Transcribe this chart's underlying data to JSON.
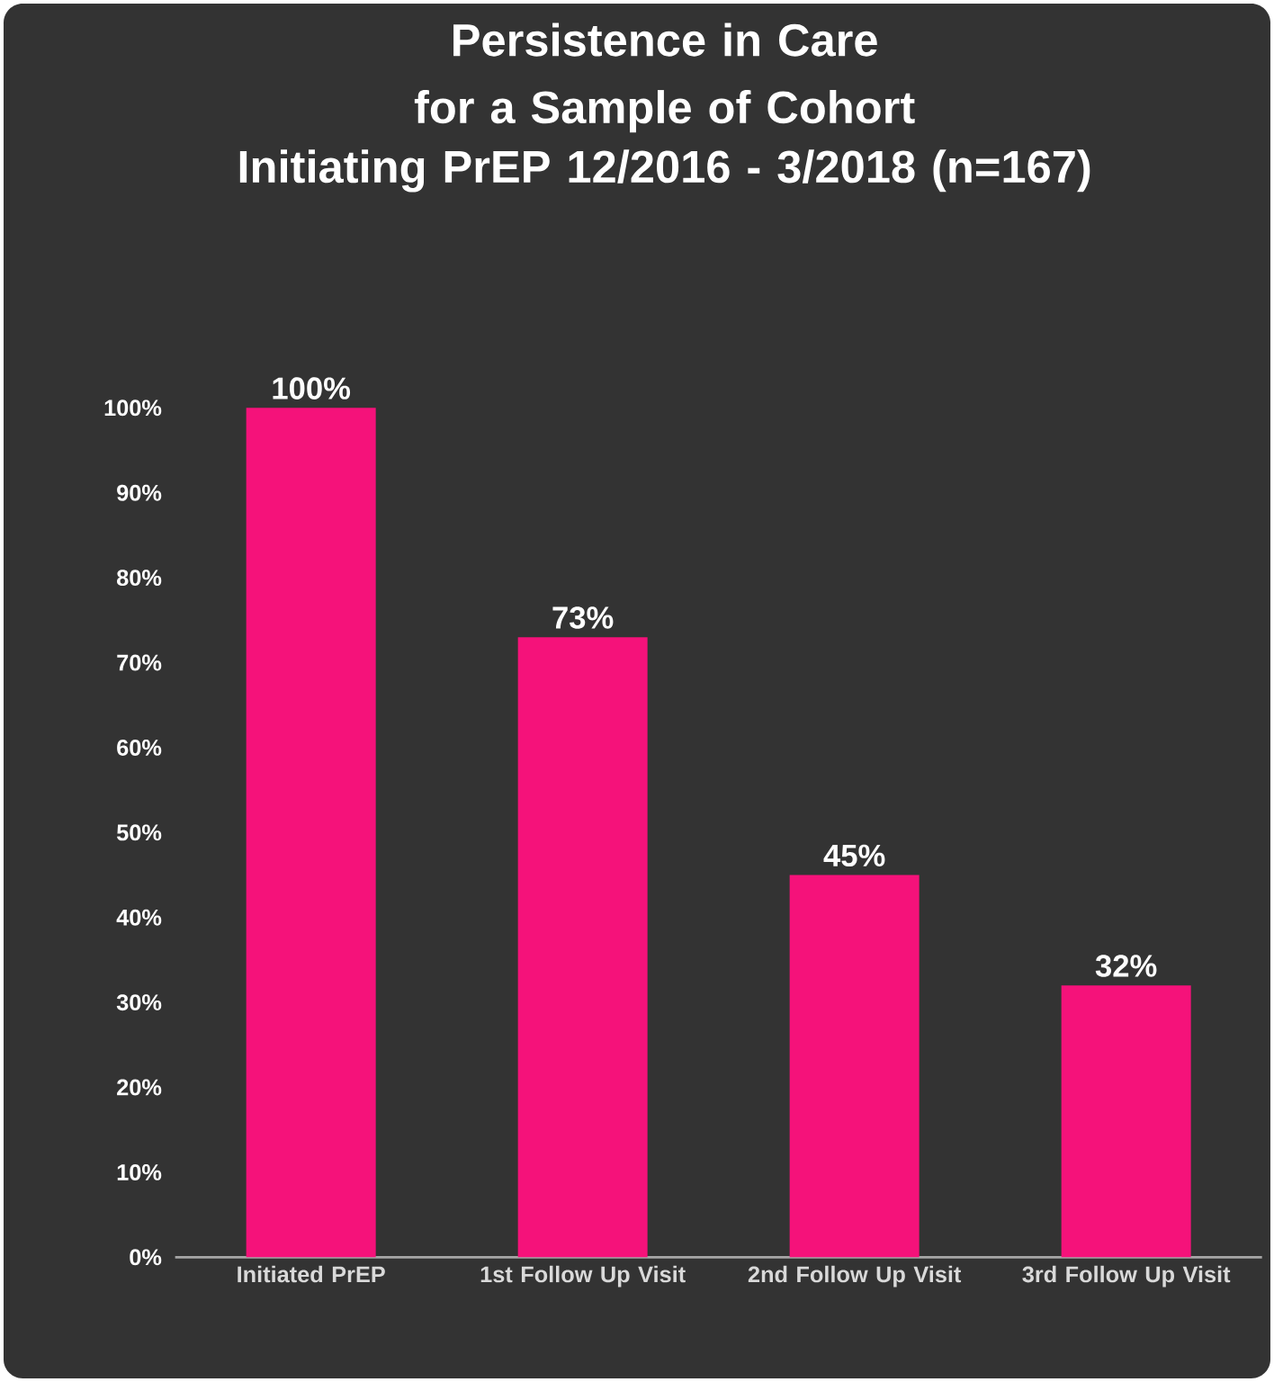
{
  "chart_data": {
    "type": "bar",
    "title": "Persistence in Care for a Sample of Cohort",
    "subtitle": "Initiating PrEP 12/2016 - 3/2018 (n=167)",
    "categories": [
      "Initiated PrEP",
      "1st Follow Up Visit",
      "2nd Follow Up Visit",
      "3rd Follow Up Visit"
    ],
    "values": [
      100,
      73,
      45,
      32
    ],
    "value_labels": [
      "100%",
      "73%",
      "45%",
      "32%"
    ],
    "color": "#f5127a",
    "ylim": [
      0,
      100
    ],
    "yticks": [
      {
        "value": 0,
        "label": "0%"
      },
      {
        "value": 10,
        "label": "10%"
      },
      {
        "value": 20,
        "label": "20%"
      },
      {
        "value": 30,
        "label": "30%"
      },
      {
        "value": 40,
        "label": "40%"
      },
      {
        "value": 50,
        "label": "50%"
      },
      {
        "value": 60,
        "label": "60%"
      },
      {
        "value": 70,
        "label": "70%"
      },
      {
        "value": 80,
        "label": "80%"
      },
      {
        "value": 90,
        "label": "90%"
      },
      {
        "value": 100,
        "label": "100%"
      }
    ],
    "grid": false
  }
}
